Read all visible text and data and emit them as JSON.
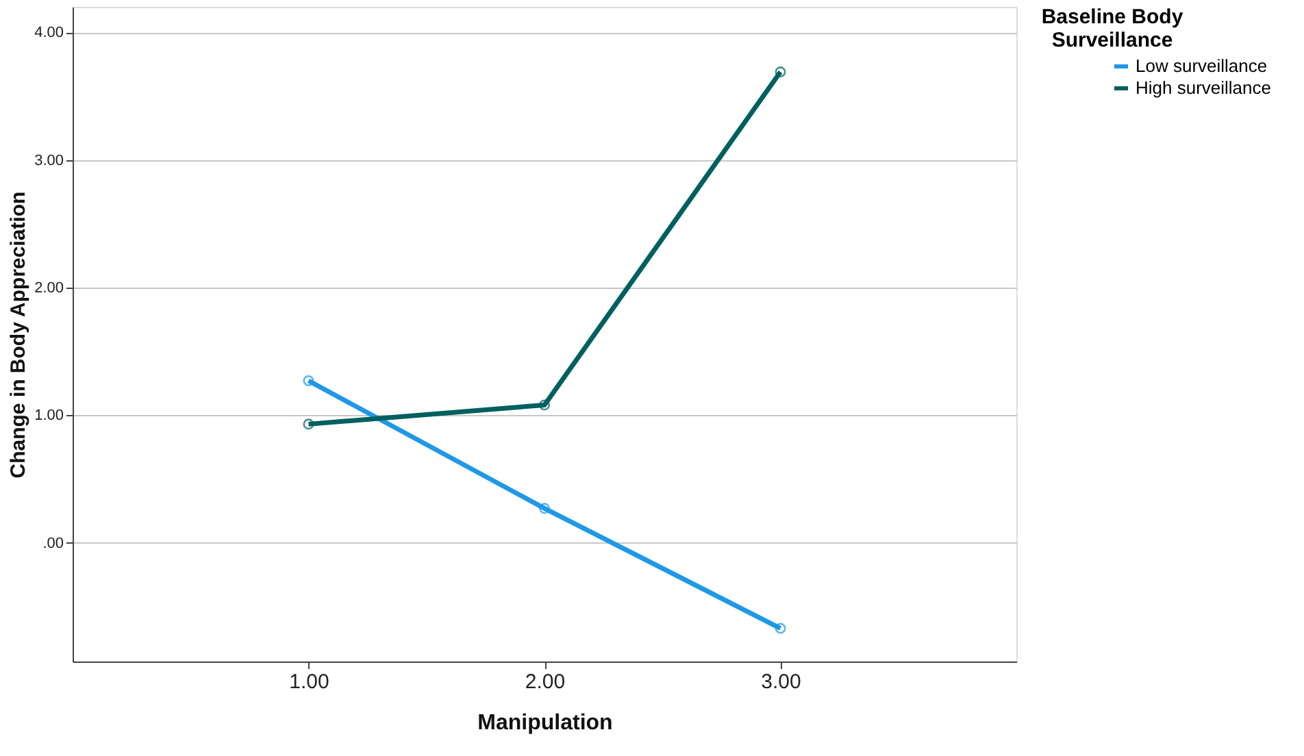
{
  "chart_data": {
    "type": "line",
    "xlabel": "Manipulation",
    "ylabel": "Change in Body Appreciation",
    "legend_title": "Baseline Body Surveillance",
    "categories": [
      "1.00",
      "2.00",
      "3.00"
    ],
    "series": [
      {
        "name": "Low surveillance",
        "color": "#1f98e8",
        "values": [
          1.27,
          0.27,
          -0.67
        ]
      },
      {
        "name": "High surveillance",
        "color": "#006060",
        "values": [
          0.93,
          1.08,
          3.69
        ]
      }
    ],
    "ylim": [
      -0.93,
      4.2
    ],
    "yticks": [
      {
        "value": 0,
        "label": ".00"
      },
      {
        "value": 1,
        "label": "1.00"
      },
      {
        "value": 2,
        "label": "2.00"
      },
      {
        "value": 3,
        "label": "3.00"
      },
      {
        "value": 4,
        "label": "4.00"
      }
    ],
    "grid": "y",
    "legend": "top right",
    "marker": "circle",
    "line_style": "solid"
  }
}
